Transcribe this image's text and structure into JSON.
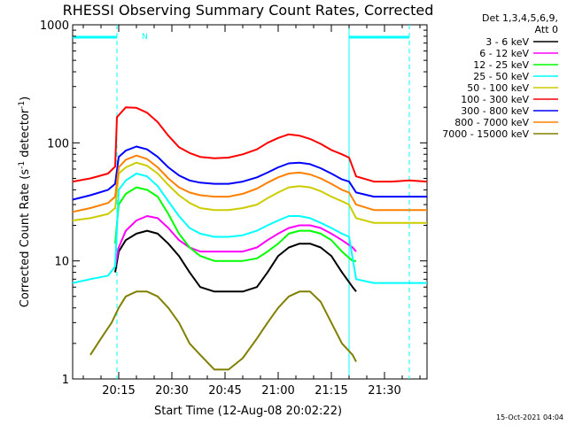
{
  "chart_data": {
    "type": "line",
    "title": "RHESSI Observing Summary Count Rates, Corrected",
    "xlabel": "Start Time (12-Aug-08 20:02:22)",
    "ylabel_main": "Corrected Count Rate (s",
    "ylabel_sup1": "-1",
    "ylabel_mid": " detector",
    "ylabel_sup2": "-1",
    "ylabel_end": ")",
    "y_scale": "log",
    "ylim": [
      1,
      1000
    ],
    "xlim_minutes": [
      0,
      100
    ],
    "x_ticks": [
      {
        "minute": 13,
        "label": "20:15"
      },
      {
        "minute": 28,
        "label": "20:30"
      },
      {
        "minute": 43,
        "label": "20:45"
      },
      {
        "minute": 58,
        "label": "21:00"
      },
      {
        "minute": 73,
        "label": "21:15"
      },
      {
        "minute": 88,
        "label": "21:30"
      }
    ],
    "y_ticks": [
      {
        "value": 1,
        "label": "1"
      },
      {
        "value": 10,
        "label": "10"
      },
      {
        "value": 100,
        "label": "100"
      },
      {
        "value": 1000,
        "label": "1000"
      }
    ],
    "legend_title": [
      "Det 1,3,4,5,6,9,",
      "Att 0"
    ],
    "legend_position": "right",
    "night_marker_label": "N",
    "timestamp": "15-Oct-2021 04:04",
    "vertical_markers": [
      {
        "minute": 12.5,
        "color": "#00ffff",
        "style": "dashed"
      },
      {
        "minute": 78,
        "color": "#00ffff",
        "style": "solid"
      },
      {
        "minute": 95,
        "color": "#00ffff",
        "style": "dashed"
      }
    ],
    "series": [
      {
        "name": "3 - 6 keV",
        "color": "#000000",
        "x": [
          12,
          13,
          15,
          18,
          21,
          24,
          27,
          30,
          33,
          36,
          40,
          44,
          48,
          52,
          55,
          58,
          61,
          64,
          67,
          70,
          73,
          76,
          79,
          80
        ],
        "y": [
          8,
          12,
          15,
          17,
          18,
          17,
          14,
          11,
          8,
          6,
          5.5,
          5.5,
          5.5,
          6,
          8,
          11,
          13,
          14,
          14,
          13,
          11,
          8,
          6,
          5.5
        ]
      },
      {
        "name": "6 - 12 keV",
        "color": "#ff00ff",
        "x": [
          12,
          13,
          15,
          18,
          21,
          24,
          27,
          30,
          33,
          36,
          40,
          44,
          48,
          52,
          55,
          58,
          61,
          64,
          67,
          70,
          73,
          76,
          79,
          80
        ],
        "y": [
          9,
          13,
          18,
          22,
          24,
          23,
          19,
          15,
          13,
          12,
          12,
          12,
          12,
          13,
          15,
          17,
          19,
          20,
          20,
          19,
          17,
          15,
          13,
          12
        ]
      },
      {
        "name": "12 - 25 keV",
        "color": "#00ff00",
        "x": [
          12,
          13,
          15,
          18,
          21,
          24,
          27,
          30,
          33,
          36,
          40,
          44,
          48,
          52,
          55,
          58,
          61,
          64,
          67,
          70,
          73,
          76,
          79,
          80
        ],
        "y": [
          14,
          30,
          37,
          42,
          40,
          35,
          25,
          17,
          13,
          11,
          10,
          10,
          10,
          10.5,
          12,
          14,
          17,
          18,
          18,
          17,
          15,
          12,
          10,
          10
        ]
      },
      {
        "name": "25 - 50 keV",
        "color": "#00ffff",
        "x": [
          0,
          5,
          10,
          12,
          13,
          15,
          18,
          21,
          24,
          27,
          30,
          33,
          36,
          40,
          44,
          48,
          52,
          55,
          58,
          61,
          64,
          67,
          70,
          73,
          76,
          78,
          80,
          85,
          90,
          95,
          100
        ],
        "y": [
          6.5,
          7,
          7.5,
          9,
          40,
          48,
          55,
          52,
          43,
          32,
          24,
          19,
          17,
          16,
          16,
          16.5,
          18,
          20,
          22,
          24,
          24,
          23,
          21,
          19,
          17,
          16,
          7,
          6.5,
          6.5,
          6.5,
          6.5
        ]
      },
      {
        "name": "50 - 100 keV",
        "color": "#cccc00",
        "x": [
          0,
          5,
          10,
          12,
          13,
          15,
          18,
          21,
          24,
          27,
          30,
          33,
          36,
          40,
          44,
          48,
          52,
          55,
          58,
          61,
          64,
          67,
          70,
          73,
          76,
          78,
          80,
          85,
          90,
          95,
          100
        ],
        "y": [
          22,
          23,
          25,
          28,
          55,
          62,
          68,
          64,
          55,
          44,
          36,
          31,
          28,
          27,
          27,
          28,
          30,
          34,
          38,
          42,
          43,
          42,
          39,
          35,
          32,
          30,
          23,
          21,
          21,
          21,
          21
        ]
      },
      {
        "name": "100 - 300 keV",
        "color": "#ff0000",
        "x": [
          0,
          5,
          10,
          12,
          12.5,
          15,
          18,
          21,
          24,
          27,
          30,
          33,
          36,
          40,
          44,
          48,
          52,
          55,
          58,
          61,
          64,
          67,
          70,
          73,
          76,
          78,
          80,
          85,
          90,
          95,
          100
        ],
        "y": [
          47,
          50,
          55,
          63,
          165,
          200,
          198,
          180,
          150,
          115,
          92,
          82,
          76,
          74,
          75,
          80,
          88,
          100,
          110,
          118,
          115,
          108,
          98,
          87,
          80,
          75,
          52,
          47,
          47,
          48,
          47
        ]
      },
      {
        "name": "300 - 800 keV",
        "color": "#0000ff",
        "x": [
          0,
          5,
          10,
          12,
          13,
          15,
          18,
          21,
          24,
          27,
          30,
          33,
          36,
          40,
          44,
          48,
          52,
          55,
          58,
          61,
          64,
          67,
          70,
          73,
          76,
          78,
          80,
          85,
          90,
          95,
          100
        ],
        "y": [
          33,
          36,
          40,
          45,
          76,
          86,
          93,
          88,
          76,
          62,
          53,
          48,
          46,
          45,
          45,
          47,
          51,
          56,
          62,
          67,
          68,
          66,
          61,
          55,
          49,
          47,
          38,
          35,
          35,
          35,
          35
        ]
      },
      {
        "name": "800 - 7000 keV",
        "color": "#ff8000",
        "x": [
          0,
          5,
          10,
          12,
          13,
          15,
          18,
          21,
          24,
          27,
          30,
          33,
          36,
          40,
          44,
          48,
          52,
          55,
          58,
          61,
          64,
          67,
          70,
          73,
          76,
          78,
          80,
          85,
          90,
          95,
          100
        ],
        "y": [
          26,
          28,
          31,
          35,
          62,
          72,
          78,
          73,
          62,
          50,
          42,
          38,
          36,
          35,
          35,
          37,
          41,
          46,
          51,
          55,
          56,
          54,
          50,
          45,
          40,
          38,
          30,
          27,
          27,
          27,
          27
        ]
      },
      {
        "name": "7000 - 15000 keV",
        "color": "#808000",
        "x": [
          5,
          8,
          11,
          13,
          15,
          18,
          21,
          24,
          27,
          30,
          33,
          36,
          40,
          44,
          48,
          52,
          55,
          58,
          61,
          64,
          67,
          70,
          73,
          76,
          79,
          80
        ],
        "y": [
          1.6,
          2.2,
          3,
          4,
          5,
          5.5,
          5.5,
          5,
          4,
          3,
          2,
          1.6,
          1.2,
          1.2,
          1.5,
          2.2,
          3,
          4,
          5,
          5.5,
          5.5,
          4.5,
          3,
          2,
          1.6,
          1.4
        ]
      }
    ]
  }
}
